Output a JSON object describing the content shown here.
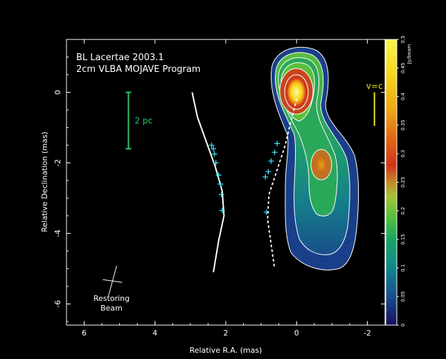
{
  "chart_data": {
    "type": "contour",
    "title_lines": [
      "BL Lacertae 2003.1",
      "2cm VLBA MOJAVE Program"
    ],
    "xlabel": "Relative R.A. (mas)",
    "ylabel": "Relative Declination (mas)",
    "xlim": [
      6.5,
      -2.5
    ],
    "ylim": [
      -6.6,
      1.5
    ],
    "x_ticks": [
      6,
      4,
      2,
      0,
      -2
    ],
    "y_ticks": [
      0,
      -2,
      -4,
      -6
    ],
    "colorbar": {
      "label": "Jy/beam",
      "min": 0,
      "max": 0.5,
      "ticks": [
        0,
        0.05,
        0.1,
        0.15,
        0.2,
        0.25,
        0.3,
        0.35,
        0.4,
        0.45,
        0.5
      ],
      "tick_labels": [
        "0",
        "0.05",
        "0.1",
        "0.15",
        "0.2",
        "0.25",
        "0.3",
        "0.35",
        "0.4",
        "0.45",
        "0.5"
      ]
    },
    "scale_bar": {
      "label": "2 pc",
      "x": 4.75,
      "y_top": 0.0,
      "y_bottom": -1.6,
      "color": "#2ec66a"
    },
    "velocity_bar": {
      "label": "v=c",
      "x": -2.2,
      "y_top": 0.0,
      "y_bottom": -0.95,
      "color": "#f2e51c"
    },
    "beam_label": [
      "Restoring",
      "Beam"
    ],
    "beam": {
      "x": 5.2,
      "y": -5.35
    },
    "jet_ridge": [
      [
        0.0,
        -0.2
      ],
      [
        0.18,
        -0.9
      ],
      [
        0.32,
        -1.5
      ],
      [
        0.55,
        -2.2
      ],
      [
        0.78,
        -2.9
      ],
      [
        0.82,
        -3.6
      ],
      [
        0.72,
        -4.3
      ],
      [
        0.62,
        -5.0
      ]
    ],
    "curve": [
      [
        2.95,
        0.0
      ],
      [
        2.8,
        -0.7
      ],
      [
        2.55,
        -1.4
      ],
      [
        2.3,
        -2.1
      ],
      [
        2.1,
        -2.8
      ],
      [
        2.05,
        -3.5
      ],
      [
        2.2,
        -4.2
      ],
      [
        2.35,
        -5.1
      ]
    ],
    "cross_markers": [
      [
        2.4,
        -1.5
      ],
      [
        2.35,
        -1.6
      ],
      [
        2.32,
        -1.75
      ],
      [
        2.28,
        -2.0
      ],
      [
        2.2,
        -2.35
      ],
      [
        2.15,
        -2.6
      ],
      [
        2.12,
        -2.9
      ],
      [
        2.1,
        -3.35
      ]
    ],
    "component_markers": [
      [
        0.55,
        -1.45
      ],
      [
        0.62,
        -1.7
      ],
      [
        0.72,
        -1.95
      ],
      [
        0.8,
        -2.25
      ],
      [
        0.88,
        -2.4
      ],
      [
        0.85,
        -3.4
      ]
    ],
    "contour_levels": [
      "#ffffff",
      "#ffffff",
      "#ffffff",
      "#ffffff",
      "#ffffff",
      "#ffffff"
    ],
    "colors": {
      "frame": "#ffffff",
      "cmap": [
        "#1a1470",
        "#1b4f8e",
        "#11848c",
        "#16a36c",
        "#5cbf3a",
        "#a9c437",
        "#c98a26",
        "#d32b1a",
        "#e66b14",
        "#f3b415",
        "#f6e21a",
        "#f9f56a"
      ]
    }
  }
}
